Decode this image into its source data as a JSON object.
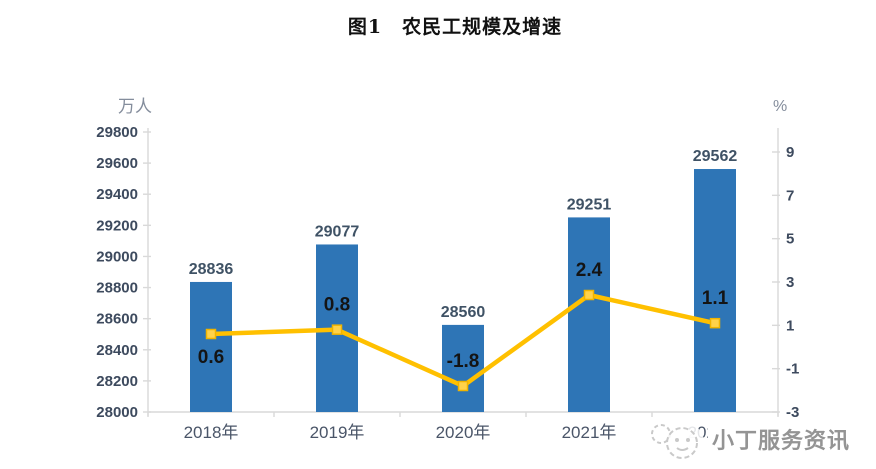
{
  "title": "图1　农民工规模及增速",
  "watermark": {
    "text": "小丁服务资讯"
  },
  "chart_data": {
    "type": "combo",
    "title": "图1　农民工规模及增速",
    "categories": [
      "2018年",
      "2019年",
      "2020年",
      "2021年",
      "2022年"
    ],
    "series": [
      {
        "type": "bar",
        "axis": "left",
        "values": [
          28836,
          29077,
          28560,
          29251,
          29562
        ],
        "color": "#2E75B6",
        "label_color": "#3F5265"
      },
      {
        "type": "line",
        "axis": "right",
        "values": [
          0.6,
          0.8,
          -1.8,
          2.4,
          1.1
        ],
        "color": "#FFC000",
        "marker_fill": "#FFD24A",
        "marker_stroke": "#F0B400",
        "label_color": "#141414",
        "label_side": [
          "below",
          "above",
          "above",
          "above",
          "above"
        ]
      }
    ],
    "left_axis": {
      "unit": "万人",
      "min": 28000,
      "max": 29800,
      "tick_step": 200,
      "ticks": [
        29800,
        29600,
        29400,
        29200,
        29000,
        28800,
        28600,
        28400,
        28200,
        28000
      ]
    },
    "right_axis": {
      "unit": "%",
      "min": -3,
      "max": 9,
      "tick_step": 2,
      "ticks": [
        9,
        7,
        5,
        3,
        1,
        -1,
        -3
      ]
    },
    "grid": false,
    "legend": false,
    "colors": {
      "axis_line": "#D9D9D9",
      "tick_label": "#3D4A5E",
      "category_label": "#4A5568",
      "unit_label": "#848D9C"
    }
  }
}
